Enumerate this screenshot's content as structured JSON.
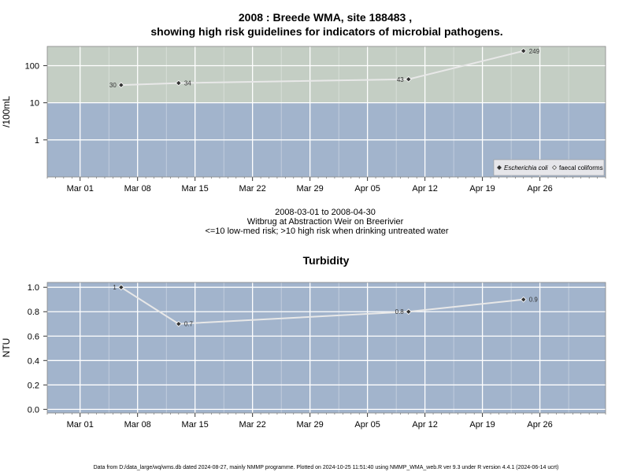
{
  "chart_data": [
    {
      "type": "line",
      "title_line1": "2008 : Breede WMA, site 188483 ,",
      "title_line2": "showing high risk guidelines for indicators of microbial pathogens.",
      "ylabel": "/100mL",
      "y_scale": "log",
      "ylim": [
        0.1,
        330
      ],
      "yticks": [
        1,
        10,
        100
      ],
      "ytick_labels": [
        "1",
        "10",
        "100"
      ],
      "xlim": [
        "2008-02-26",
        "2008-05-04"
      ],
      "xticks": [
        "2008-03-01",
        "2008-03-08",
        "2008-03-15",
        "2008-03-22",
        "2008-03-29",
        "2008-04-05",
        "2008-04-12",
        "2008-04-19",
        "2008-04-26"
      ],
      "xtick_labels": [
        "Mar 01",
        "Mar 08",
        "Mar 15",
        "Mar 22",
        "Mar 29",
        "Apr 05",
        "Apr 12",
        "Apr 19",
        "Apr 26"
      ],
      "risk_threshold": 10,
      "bands": {
        "low_med_color": "#a2b4cc",
        "high_color": "#c4cec4"
      },
      "series": [
        {
          "name": "Escherichia coli",
          "marker": "filled-diamond",
          "points": [
            {
              "x": "2008-03-06",
              "y": 30,
              "label": "30"
            },
            {
              "x": "2008-03-13",
              "y": 34,
              "label": "34"
            },
            {
              "x": "2008-04-10",
              "y": 43,
              "label": "43"
            },
            {
              "x": "2008-04-24",
              "y": 249,
              "label": "249"
            }
          ]
        }
      ],
      "legend": {
        "position": "bottom-right",
        "entries": [
          {
            "label": "Escherichia coli",
            "marker": "filled-diamond",
            "italic": true
          },
          {
            "label": "faecal coliforms",
            "marker": "open-diamond",
            "italic": false
          }
        ]
      },
      "caption": [
        "2008-03-01 to 2008-04-30",
        "Witbrug at Abstraction Weir on Breerivier",
        "<=10 low-med risk; >10 high risk when drinking untreated water"
      ]
    },
    {
      "type": "line",
      "title": "Turbidity",
      "ylabel": "NTU",
      "y_scale": "linear",
      "ylim": [
        -0.03,
        1.04
      ],
      "yticks": [
        0.0,
        0.2,
        0.4,
        0.6,
        0.8,
        1.0
      ],
      "ytick_labels": [
        "0.0",
        "0.2",
        "0.4",
        "0.6",
        "0.8",
        "1.0"
      ],
      "xlim": [
        "2008-02-26",
        "2008-05-04"
      ],
      "xticks": [
        "2008-03-01",
        "2008-03-08",
        "2008-03-15",
        "2008-03-22",
        "2008-03-29",
        "2008-04-05",
        "2008-04-12",
        "2008-04-19",
        "2008-04-26"
      ],
      "xtick_labels": [
        "Mar 01",
        "Mar 08",
        "Mar 15",
        "Mar 22",
        "Mar 29",
        "Apr 05",
        "Apr 12",
        "Apr 19",
        "Apr 26"
      ],
      "background_color": "#a2b4cc",
      "series": [
        {
          "name": "",
          "marker": "filled-diamond",
          "points": [
            {
              "x": "2008-03-06",
              "y": 1.0,
              "label": "1"
            },
            {
              "x": "2008-03-13",
              "y": 0.7,
              "label": "0.7"
            },
            {
              "x": "2008-04-10",
              "y": 0.8,
              "label": "0.8"
            },
            {
              "x": "2008-04-24",
              "y": 0.9,
              "label": "0.9"
            }
          ]
        }
      ]
    }
  ],
  "footer": "Data from D:/data_large/wq/wms.db dated 2024-08-27, mainly NMMP programme. Plotted on 2024-10-25 11:51:40 using NMMP_WMA_web.R ver 9.3 under R version 4.4.1 (2024-06-14 ucrt)"
}
